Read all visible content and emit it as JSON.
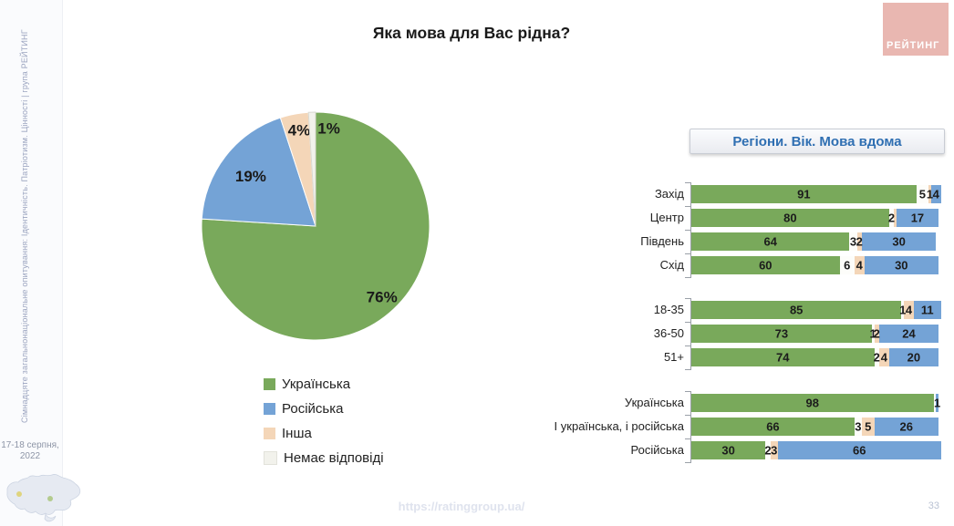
{
  "page": {
    "title": "Яка мова для Вас рідна?"
  },
  "logo": {
    "text": "РЕЙТИНГ"
  },
  "sidebar": {
    "vertical_text": "Сімнадцяте загальнонаціональне опитування: Ідентичність. Патріотизм. Цінності | група РЕЙТИНГ",
    "date_line1": "17-18 серпня,",
    "date_line2": "2022"
  },
  "panel": {
    "title": "Регіони. Вік. Мова вдома"
  },
  "footer": {
    "url": "https://ratinggroup.ua/",
    "page_number": "33"
  },
  "colors": {
    "green": "#79A95B",
    "blue": "#74A3D6",
    "peach": "#F4D6B8",
    "none": "#F2F2EC",
    "bar_none": "#FDFDFA",
    "logo_bg": "#E9B7B1",
    "panel_title": "#2F6FB2"
  },
  "legend": {
    "items": [
      {
        "label": "Українська",
        "color": "green"
      },
      {
        "label": "Російська",
        "color": "blue"
      },
      {
        "label": "Інша",
        "color": "peach"
      },
      {
        "label": "Немає відповіді",
        "color": "none"
      }
    ]
  },
  "chart_data": [
    {
      "type": "pie",
      "title": "Яка мова для Вас рідна?",
      "categories": [
        "Українська",
        "Російська",
        "Інша",
        "Немає відповіді"
      ],
      "values": [
        76,
        19,
        4,
        1
      ],
      "labels": [
        "76%",
        "19%",
        "4%",
        "1%"
      ],
      "colors": [
        "green",
        "blue",
        "peach",
        "none"
      ],
      "start_angle": "12-oclock",
      "direction": "clockwise",
      "legend_position": "bottom-left"
    },
    {
      "type": "bar",
      "subtype": "horizontal-stacked",
      "title": "Регіони. Вік. Мова вдома",
      "xlim": [
        0,
        100
      ],
      "segment_categories": [
        "Українська",
        "Немає відповіді",
        "Інша",
        "Російська"
      ],
      "groups": [
        {
          "name": "regions",
          "rows": [
            {
              "label": "Захід",
              "segments": [
                {
                  "color": "green",
                  "value": 91,
                  "label": "91"
                },
                {
                  "color": "bar_none",
                  "value": 5,
                  "label": "5"
                },
                {
                  "color": "peach",
                  "value": 1,
                  "label": "1"
                },
                {
                  "color": "blue",
                  "value": 4,
                  "label": "4"
                }
              ]
            },
            {
              "label": "Центр",
              "segments": [
                {
                  "color": "green",
                  "value": 80,
                  "label": "80"
                },
                {
                  "color": "bar_none",
                  "value": 2,
                  "label": "2"
                },
                {
                  "color": "peach",
                  "value": 1,
                  "label": ""
                },
                {
                  "color": "blue",
                  "value": 17,
                  "label": "17"
                }
              ]
            },
            {
              "label": "Південь",
              "segments": [
                {
                  "color": "green",
                  "value": 64,
                  "label": "64"
                },
                {
                  "color": "bar_none",
                  "value": 3,
                  "label": "3"
                },
                {
                  "color": "peach",
                  "value": 2,
                  "label": "2"
                },
                {
                  "color": "blue",
                  "value": 30,
                  "label": "30"
                }
              ]
            },
            {
              "label": "Схід",
              "segments": [
                {
                  "color": "green",
                  "value": 60,
                  "label": "60"
                },
                {
                  "color": "bar_none",
                  "value": 6,
                  "label": "6"
                },
                {
                  "color": "peach",
                  "value": 4,
                  "label": "4"
                },
                {
                  "color": "blue",
                  "value": 30,
                  "label": "30"
                }
              ]
            }
          ]
        },
        {
          "name": "age",
          "rows": [
            {
              "label": "18-35",
              "segments": [
                {
                  "color": "green",
                  "value": 85,
                  "label": "85"
                },
                {
                  "color": "bar_none",
                  "value": 1,
                  "label": "1"
                },
                {
                  "color": "peach",
                  "value": 4,
                  "label": "4"
                },
                {
                  "color": "blue",
                  "value": 11,
                  "label": "11"
                }
              ]
            },
            {
              "label": "36-50",
              "segments": [
                {
                  "color": "green",
                  "value": 73,
                  "label": "73"
                },
                {
                  "color": "bar_none",
                  "value": 1,
                  "label": "1"
                },
                {
                  "color": "peach",
                  "value": 2,
                  "label": "2"
                },
                {
                  "color": "blue",
                  "value": 24,
                  "label": "24"
                }
              ]
            },
            {
              "label": "51+",
              "segments": [
                {
                  "color": "green",
                  "value": 74,
                  "label": "74"
                },
                {
                  "color": "bar_none",
                  "value": 2,
                  "label": "2"
                },
                {
                  "color": "peach",
                  "value": 4,
                  "label": "4"
                },
                {
                  "color": "blue",
                  "value": 20,
                  "label": "20"
                }
              ]
            }
          ]
        },
        {
          "name": "language-at-home",
          "rows": [
            {
              "label": "Українська",
              "segments": [
                {
                  "color": "green",
                  "value": 98,
                  "label": "98"
                },
                {
                  "color": "bar_none",
                  "value": 1,
                  "label": ""
                },
                {
                  "color": "blue",
                  "value": 1,
                  "label": "1"
                }
              ]
            },
            {
              "label": "І українська, і російська",
              "segments": [
                {
                  "color": "green",
                  "value": 66,
                  "label": "66"
                },
                {
                  "color": "bar_none",
                  "value": 3,
                  "label": "3"
                },
                {
                  "color": "peach",
                  "value": 5,
                  "label": "5"
                },
                {
                  "color": "blue",
                  "value": 26,
                  "label": "26"
                }
              ]
            },
            {
              "label": "Російська",
              "segments": [
                {
                  "color": "green",
                  "value": 30,
                  "label": "30"
                },
                {
                  "color": "bar_none",
                  "value": 2,
                  "label": "2"
                },
                {
                  "color": "peach",
                  "value": 3,
                  "label": "3"
                },
                {
                  "color": "blue",
                  "value": 66,
                  "label": "66"
                }
              ]
            }
          ]
        }
      ]
    }
  ]
}
